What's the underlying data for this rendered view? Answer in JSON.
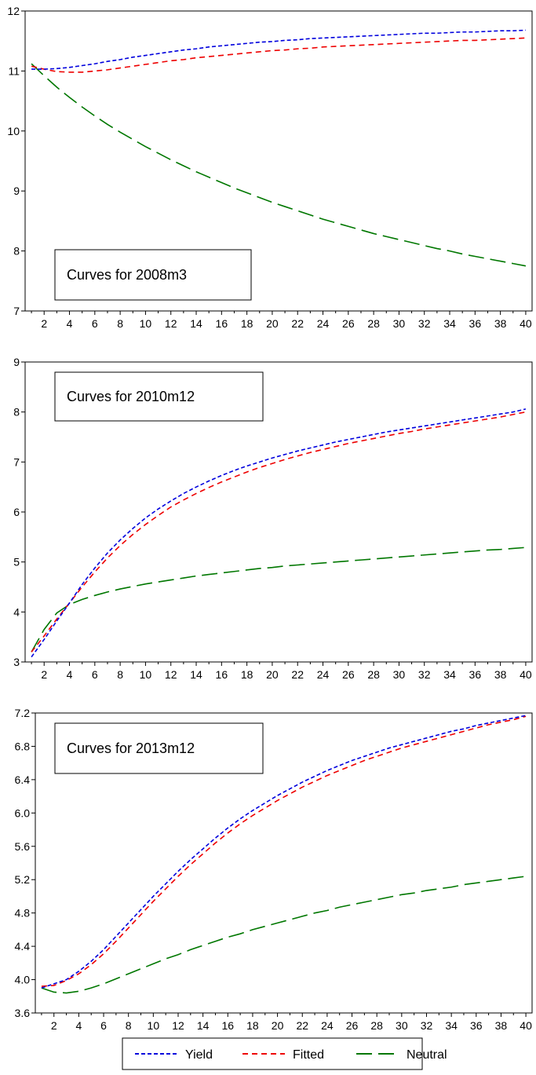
{
  "legend": {
    "items": [
      {
        "label": "Yield",
        "color": "#0000dd",
        "dash": "short"
      },
      {
        "label": "Fitted",
        "color": "#ee0000",
        "dash": "medium"
      },
      {
        "label": "Neutral",
        "color": "#007700",
        "dash": "long"
      }
    ]
  },
  "chart_data": [
    {
      "type": "line",
      "annotation": "Curves for 2008m3",
      "annotation_position": "bottom-left",
      "x": [
        1,
        2,
        3,
        4,
        5,
        6,
        7,
        8,
        9,
        10,
        11,
        12,
        13,
        14,
        15,
        16,
        17,
        18,
        19,
        20,
        21,
        22,
        23,
        24,
        25,
        26,
        27,
        28,
        29,
        30,
        31,
        32,
        33,
        34,
        35,
        36,
        37,
        38,
        39,
        40
      ],
      "xticks": [
        "2",
        "4",
        "6",
        "8",
        "10",
        "12",
        "14",
        "16",
        "18",
        "20",
        "22",
        "24",
        "26",
        "28",
        "30",
        "32",
        "34",
        "36",
        "38",
        "40"
      ],
      "ylim": [
        7,
        12
      ],
      "yticks": [
        "7",
        "8",
        "9",
        "10",
        "11",
        "12"
      ],
      "grid": false,
      "series": [
        {
          "name": "Yield",
          "values": [
            11.03,
            11.03,
            11.04,
            11.06,
            11.09,
            11.12,
            11.16,
            11.19,
            11.23,
            11.26,
            11.29,
            11.32,
            11.35,
            11.37,
            11.4,
            11.42,
            11.44,
            11.46,
            11.48,
            11.49,
            11.51,
            11.52,
            11.54,
            11.55,
            11.56,
            11.57,
            11.58,
            11.59,
            11.6,
            11.61,
            11.62,
            11.63,
            11.63,
            11.64,
            11.65,
            11.65,
            11.66,
            11.67,
            11.67,
            11.68
          ]
        },
        {
          "name": "Fitted",
          "values": [
            11.08,
            11.03,
            10.99,
            10.98,
            10.98,
            11.0,
            11.02,
            11.05,
            11.08,
            11.11,
            11.14,
            11.17,
            11.19,
            11.22,
            11.24,
            11.26,
            11.28,
            11.3,
            11.32,
            11.34,
            11.35,
            11.37,
            11.38,
            11.4,
            11.41,
            11.42,
            11.43,
            11.44,
            11.45,
            11.46,
            11.47,
            11.48,
            11.49,
            11.5,
            11.51,
            11.51,
            11.52,
            11.53,
            11.54,
            11.55
          ]
        },
        {
          "name": "Neutral",
          "values": [
            11.12,
            10.92,
            10.73,
            10.56,
            10.4,
            10.25,
            10.11,
            9.98,
            9.86,
            9.74,
            9.63,
            9.52,
            9.42,
            9.32,
            9.23,
            9.14,
            9.05,
            8.97,
            8.89,
            8.81,
            8.74,
            8.67,
            8.6,
            8.53,
            8.47,
            8.41,
            8.35,
            8.29,
            8.24,
            8.19,
            8.14,
            8.09,
            8.04,
            8.0,
            7.95,
            7.91,
            7.87,
            7.83,
            7.79,
            7.75
          ]
        }
      ]
    },
    {
      "type": "line",
      "annotation": "Curves for 2010m12",
      "annotation_position": "top-left",
      "x": [
        1,
        2,
        3,
        4,
        5,
        6,
        7,
        8,
        9,
        10,
        11,
        12,
        13,
        14,
        15,
        16,
        17,
        18,
        19,
        20,
        21,
        22,
        23,
        24,
        25,
        26,
        27,
        28,
        29,
        30,
        31,
        32,
        33,
        34,
        35,
        36,
        37,
        38,
        39,
        40
      ],
      "xticks": [
        "2",
        "4",
        "6",
        "8",
        "10",
        "12",
        "14",
        "16",
        "18",
        "20",
        "22",
        "24",
        "26",
        "28",
        "30",
        "32",
        "34",
        "36",
        "38",
        "40"
      ],
      "ylim": [
        3,
        9
      ],
      "yticks": [
        "3",
        "4",
        "5",
        "6",
        "7",
        "8",
        "9"
      ],
      "grid": false,
      "series": [
        {
          "name": "Yield",
          "values": [
            3.1,
            3.45,
            3.82,
            4.18,
            4.55,
            4.88,
            5.18,
            5.44,
            5.67,
            5.88,
            6.06,
            6.22,
            6.37,
            6.5,
            6.62,
            6.73,
            6.83,
            6.92,
            7.0,
            7.08,
            7.15,
            7.22,
            7.28,
            7.34,
            7.4,
            7.45,
            7.5,
            7.55,
            7.6,
            7.64,
            7.68,
            7.72,
            7.76,
            7.8,
            7.84,
            7.88,
            7.92,
            7.96,
            8.0,
            8.06
          ]
        },
        {
          "name": "Fitted",
          "values": [
            3.2,
            3.52,
            3.86,
            4.18,
            4.5,
            4.8,
            5.08,
            5.33,
            5.55,
            5.75,
            5.93,
            6.1,
            6.24,
            6.37,
            6.49,
            6.6,
            6.7,
            6.8,
            6.89,
            6.97,
            7.05,
            7.12,
            7.19,
            7.25,
            7.31,
            7.37,
            7.42,
            7.47,
            7.52,
            7.57,
            7.61,
            7.66,
            7.7,
            7.74,
            7.78,
            7.82,
            7.86,
            7.9,
            7.95,
            8.0
          ]
        },
        {
          "name": "Neutral",
          "values": [
            3.2,
            3.65,
            3.98,
            4.15,
            4.25,
            4.33,
            4.4,
            4.46,
            4.51,
            4.56,
            4.6,
            4.64,
            4.68,
            4.72,
            4.75,
            4.78,
            4.81,
            4.84,
            4.87,
            4.89,
            4.92,
            4.94,
            4.96,
            4.98,
            5.0,
            5.02,
            5.04,
            5.06,
            5.08,
            5.1,
            5.12,
            5.14,
            5.16,
            5.18,
            5.2,
            5.22,
            5.24,
            5.25,
            5.27,
            5.29
          ]
        }
      ]
    },
    {
      "type": "line",
      "annotation": "Curves for 2013m12",
      "annotation_position": "top-left",
      "x": [
        1,
        2,
        3,
        4,
        5,
        6,
        7,
        8,
        9,
        10,
        11,
        12,
        13,
        14,
        15,
        16,
        17,
        18,
        19,
        20,
        21,
        22,
        23,
        24,
        25,
        26,
        27,
        28,
        29,
        30,
        31,
        32,
        33,
        34,
        35,
        36,
        37,
        38,
        39,
        40
      ],
      "xticks": [
        "2",
        "4",
        "6",
        "8",
        "10",
        "12",
        "14",
        "16",
        "18",
        "20",
        "22",
        "24",
        "26",
        "28",
        "30",
        "32",
        "34",
        "36",
        "38",
        "40"
      ],
      "ylim": [
        3.6,
        7.2
      ],
      "yticks": [
        "3.6",
        "4.0",
        "4.4",
        "4.8",
        "5.2",
        "5.6",
        "6.0",
        "6.4",
        "6.8",
        "7.2"
      ],
      "grid": false,
      "series": [
        {
          "name": "Yield",
          "values": [
            3.9,
            3.95,
            4.0,
            4.1,
            4.22,
            4.36,
            4.52,
            4.68,
            4.84,
            5.0,
            5.15,
            5.3,
            5.44,
            5.57,
            5.7,
            5.82,
            5.93,
            6.03,
            6.12,
            6.21,
            6.29,
            6.37,
            6.44,
            6.51,
            6.57,
            6.63,
            6.68,
            6.73,
            6.78,
            6.82,
            6.86,
            6.9,
            6.94,
            6.98,
            7.01,
            7.05,
            7.08,
            7.11,
            7.14,
            7.17
          ]
        },
        {
          "name": "Fitted",
          "values": [
            3.92,
            3.93,
            3.99,
            4.07,
            4.18,
            4.31,
            4.46,
            4.62,
            4.78,
            4.94,
            5.09,
            5.24,
            5.38,
            5.51,
            5.64,
            5.76,
            5.87,
            5.97,
            6.06,
            6.15,
            6.23,
            6.31,
            6.38,
            6.45,
            6.51,
            6.57,
            6.63,
            6.68,
            6.73,
            6.78,
            6.82,
            6.86,
            6.9,
            6.94,
            6.98,
            7.02,
            7.06,
            7.09,
            7.12,
            7.16
          ]
        },
        {
          "name": "Neutral",
          "values": [
            3.9,
            3.85,
            3.84,
            3.86,
            3.9,
            3.95,
            4.01,
            4.07,
            4.13,
            4.19,
            4.25,
            4.3,
            4.36,
            4.41,
            4.46,
            4.51,
            4.55,
            4.6,
            4.64,
            4.68,
            4.72,
            4.76,
            4.8,
            4.83,
            4.87,
            4.9,
            4.93,
            4.96,
            4.99,
            5.02,
            5.04,
            5.07,
            5.09,
            5.11,
            5.14,
            5.16,
            5.18,
            5.2,
            5.22,
            5.24
          ]
        }
      ]
    }
  ]
}
